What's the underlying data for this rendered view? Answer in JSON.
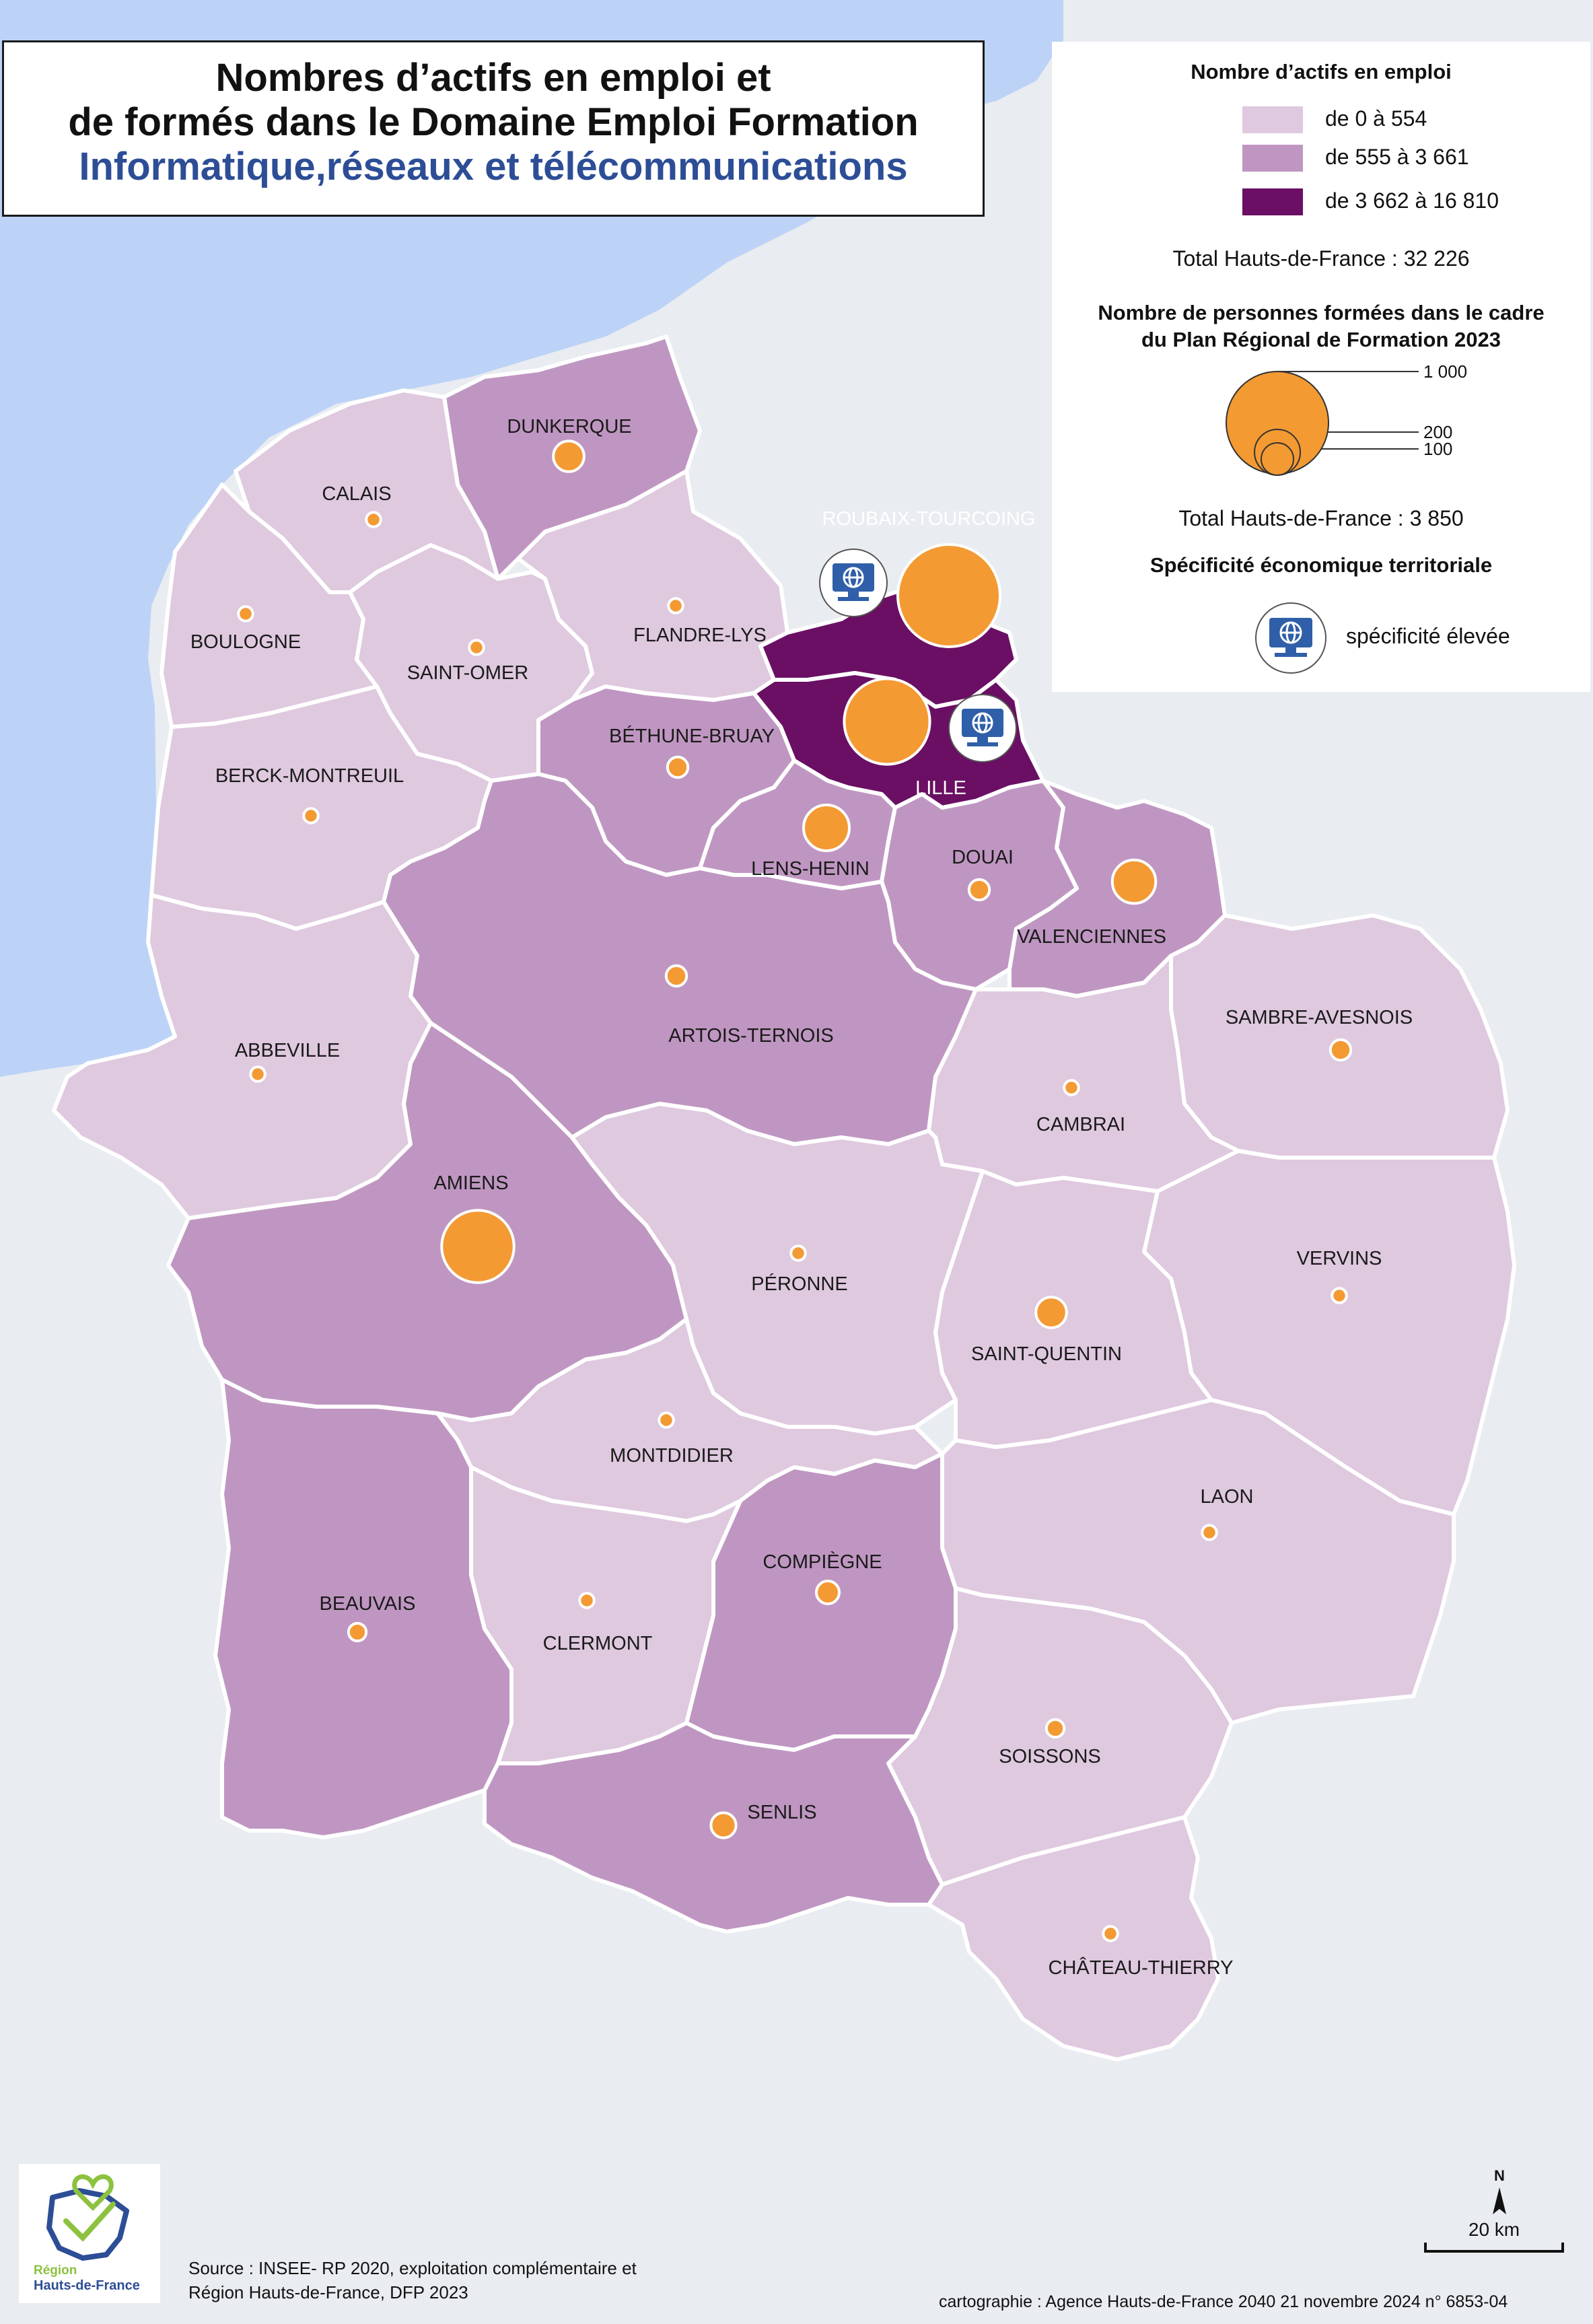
{
  "title": {
    "line1": "Nombres d’actifs en emploi et",
    "line2": "de formés dans le Domaine Emploi Formation",
    "line3": "Informatique,réseaux et télécommunications"
  },
  "legend": {
    "choropleth_title": "Nombre d’actifs en emploi",
    "classes": [
      {
        "label": "de 0 à 554",
        "color": "#dfc9df"
      },
      {
        "label": "de 555 à 3 661",
        "color": "#bf96c1"
      },
      {
        "label": "de 3 662 à 16 810",
        "color": "#6a0f63"
      }
    ],
    "total_actifs": "Total Hauts-de-France : 32 226",
    "circles_title_1": "Nombre de personnes formées dans le cadre",
    "circles_title_2": "du Plan Régional de Formation 2023",
    "circle_sizes": [
      "1 000",
      "200",
      "100"
    ],
    "total_formes": "Total Hauts-de-France :  3 850",
    "specificity_title": "Spécificité économique territoriale",
    "specificity_label": "spécificité élevée",
    "circle_color": "#f39a33",
    "sea_color": "#bcd3f7",
    "outside_color": "#e9ecf0"
  },
  "zones": [
    {
      "name": "DUNKERQUE",
      "class": 1,
      "formes": 90
    },
    {
      "name": "CALAIS",
      "class": 0,
      "formes": 20
    },
    {
      "name": "BOULOGNE",
      "class": 0,
      "formes": 20
    },
    {
      "name": "SAINT-OMER",
      "class": 0,
      "formes": 20
    },
    {
      "name": "FLANDRE-LYS",
      "class": 0,
      "formes": 20
    },
    {
      "name": "ROUBAIX-TOURCOING",
      "class": 2,
      "formes": 1000
    },
    {
      "name": "LILLE",
      "class": 2,
      "formes": 700
    },
    {
      "name": "BÉTHUNE-BRUAY",
      "class": 1,
      "formes": 40
    },
    {
      "name": "BERCK-MONTREUIL",
      "class": 0,
      "formes": 20
    },
    {
      "name": "LENS-HENIN",
      "class": 1,
      "formes": 200
    },
    {
      "name": "DOUAI",
      "class": 1,
      "formes": 40
    },
    {
      "name": "VALENCIENNES",
      "class": 1,
      "formes": 180
    },
    {
      "name": "ARTOIS-TERNOIS",
      "class": 1,
      "formes": 40
    },
    {
      "name": "ABBEVILLE",
      "class": 0,
      "formes": 20
    },
    {
      "name": "SAMBRE-AVESNOIS",
      "class": 0,
      "formes": 40
    },
    {
      "name": "CAMBRAI",
      "class": 0,
      "formes": 20
    },
    {
      "name": "AMIENS",
      "class": 1,
      "formes": 500
    },
    {
      "name": "PÉRONNE",
      "class": 0,
      "formes": 20
    },
    {
      "name": "VERVINS",
      "class": 0,
      "formes": 20
    },
    {
      "name": "SAINT-QUENTIN",
      "class": 0,
      "formes": 90
    },
    {
      "name": "MONTDIDIER",
      "class": 0,
      "formes": 20
    },
    {
      "name": "LAON",
      "class": 0,
      "formes": 20
    },
    {
      "name": "COMPIÈGNE",
      "class": 1,
      "formes": 50
    },
    {
      "name": "BEAUVAIS",
      "class": 1,
      "formes": 30
    },
    {
      "name": "CLERMONT",
      "class": 0,
      "formes": 20
    },
    {
      "name": "SOISSONS",
      "class": 0,
      "formes": 30
    },
    {
      "name": "SENLIS",
      "class": 1,
      "formes": 60
    },
    {
      "name": "CHÂTEAU-THIERRY",
      "class": 0,
      "formes": 20
    }
  ],
  "specificity_zones": [
    "ROUBAIX-TOURCOING",
    "LILLE"
  ],
  "scale": {
    "north": "N",
    "label": "20 km"
  },
  "logo": {
    "line1": "Région",
    "line2": "Hauts-de-France"
  },
  "source": {
    "line1": "Source : INSEE- RP 2020, exploitation complémentaire et",
    "line2": "Région Hauts-de-France, DFP 2023"
  },
  "credits": "cartographie : Agence Hauts-de-France 2040  21 novembre 2024  n° 6853-04"
}
